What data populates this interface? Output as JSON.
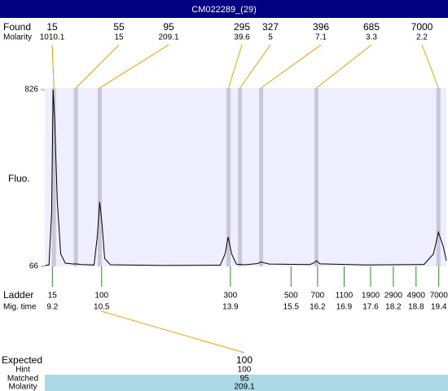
{
  "header": {
    "title": "CM022289_(29)"
  },
  "chart_data": {
    "type": "line",
    "ylabel": "Fluo.",
    "ylim": [
      66,
      826
    ],
    "yticks": [
      66,
      826
    ],
    "xlim": [
      9.0,
      19.6
    ],
    "series": [
      {
        "color": "#000000",
        "x": [
          9.006,
          9.11,
          9.18,
          9.22,
          9.26,
          9.33,
          9.42,
          9.54,
          9.76,
          9.82,
          9.97,
          10.3,
          10.39,
          10.45,
          10.51,
          10.58,
          10.73,
          12.12,
          13.63,
          13.76,
          13.84,
          13.93,
          14.06,
          14.28,
          14.6,
          14.71,
          14.92,
          16.0,
          16.11,
          16.17,
          16.26,
          17.5,
          19.01,
          19.26,
          19.39,
          19.52,
          19.6
        ],
        "values": [
          70,
          72,
          300,
          826,
          700,
          350,
          120,
          80,
          76,
          77,
          74,
          72,
          200,
          343,
          250,
          100,
          73,
          70,
          71,
          120,
          192,
          120,
          75,
          73,
          78,
          85,
          76,
          74,
          82,
          90,
          77,
          72,
          74,
          120,
          213,
          150,
          90
        ]
      }
    ],
    "found": {
      "label": "Found",
      "sublabel": "Molarity",
      "sizes": [
        15,
        55,
        95,
        295,
        327,
        396,
        685,
        7000
      ],
      "molarity": [
        1010.1,
        15,
        209.1,
        39.6,
        5,
        7.1,
        3.3,
        2.2
      ],
      "x": [
        9.24,
        9.82,
        10.45,
        13.85,
        14.15,
        14.71,
        16.17,
        19.39
      ]
    },
    "ladder": {
      "label": "Ladder",
      "sublabel": "Mig. time",
      "sizes": [
        15,
        100,
        300,
        500,
        700,
        1100,
        1900,
        2900,
        4900,
        7000
      ],
      "x": [
        9.2,
        10.5,
        13.9,
        15.5,
        16.2,
        16.9,
        17.6,
        18.2,
        18.8,
        19.4
      ]
    },
    "match": [
      {
        "label": "Expected",
        "value": 100
      },
      {
        "label": "Hint",
        "value": 100
      },
      {
        "label": "Matched",
        "value": 95
      },
      {
        "label": "Molarity",
        "value": 209.1
      }
    ]
  }
}
